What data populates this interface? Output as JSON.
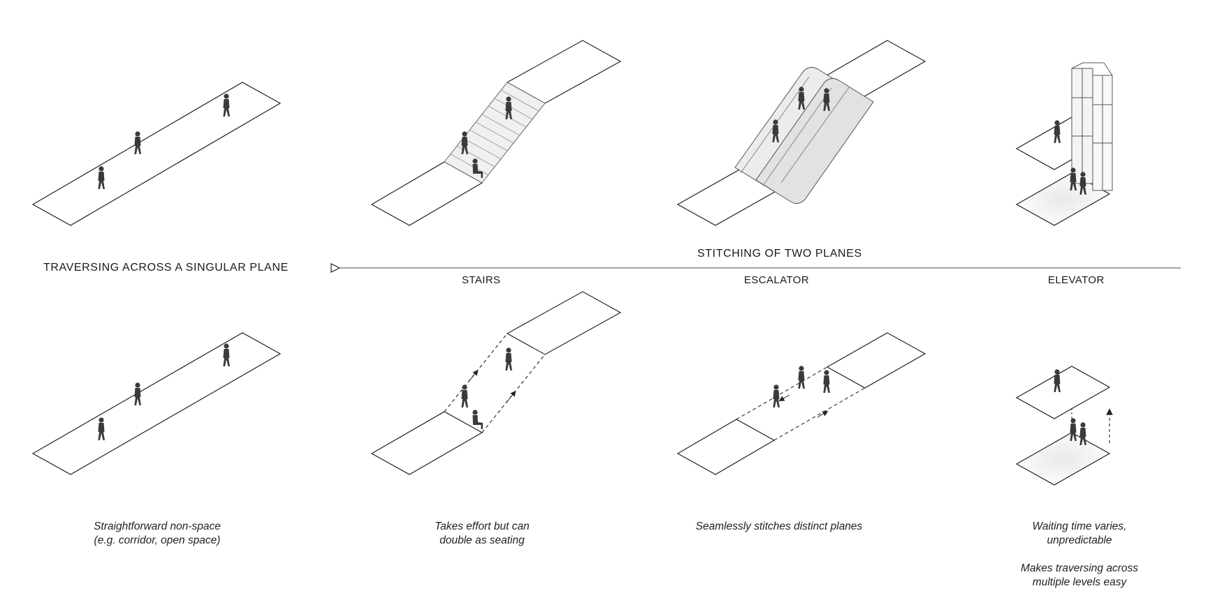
{
  "labels": {
    "singular_plane": "TRAVERSING ACROSS A SINGULAR PLANE",
    "two_planes": "STITCHING OF TWO PLANES",
    "stairs": "STAIRS",
    "escalator": "ESCALATOR",
    "elevator": "ELEVATOR"
  },
  "captions": {
    "corridor": [
      "Straightforward non-space",
      "(e.g. corridor, open space)"
    ],
    "stairs": [
      "Takes effort but can",
      "double as seating"
    ],
    "escalator": [
      "Seamlessly stitches distinct planes"
    ],
    "elevator_1": [
      "Waiting time varies,",
      "unpredictable"
    ],
    "elevator_2": [
      "Makes traversing across",
      "multiple levels easy"
    ]
  }
}
